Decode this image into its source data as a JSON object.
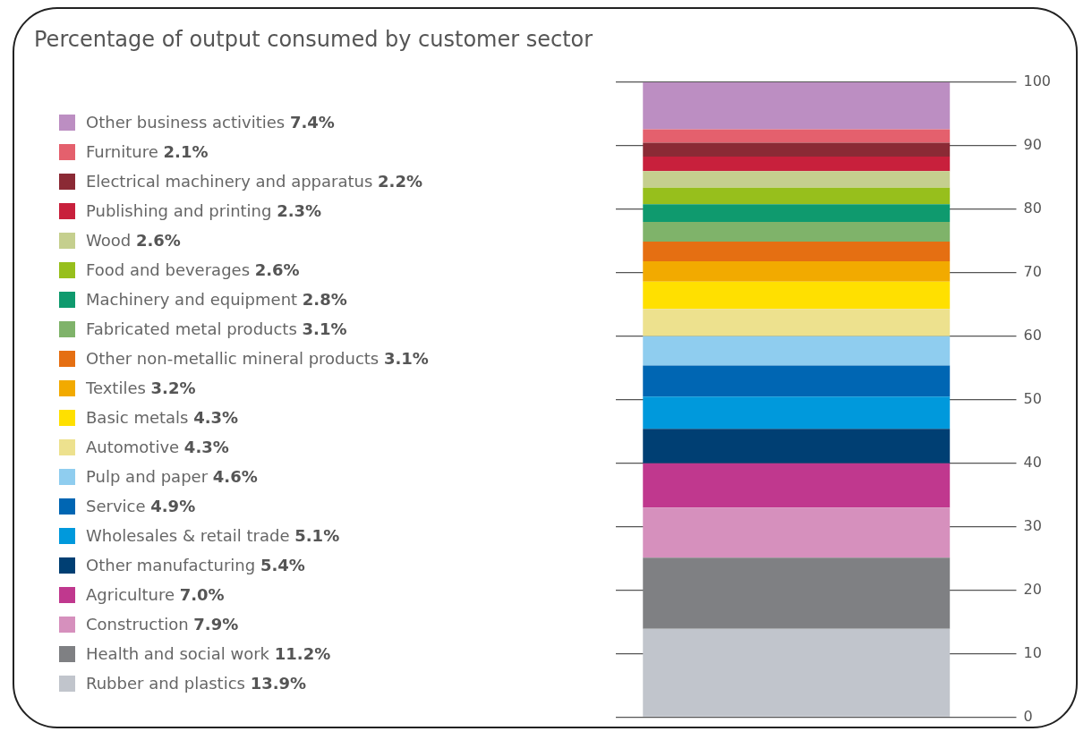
{
  "chart_data": {
    "type": "bar",
    "title": "Percentage of output consumed by customer sector",
    "stacked": true,
    "categories": [
      null
    ],
    "ylim": [
      0,
      100
    ],
    "yticks": [
      0,
      10,
      20,
      30,
      40,
      50,
      60,
      70,
      80,
      90,
      100
    ],
    "grid": "y",
    "legend": "left",
    "series": [
      {
        "name": "Rubber and plastics 13.9%",
        "color": "#c1c5cc",
        "values": [
          13.9
        ]
      },
      {
        "name": "Health and social work 11.2%",
        "color": "#7f8083",
        "values": [
          11.2
        ]
      },
      {
        "name": "Construction 7.9%",
        "color": "#d690bd",
        "values": [
          7.9
        ]
      },
      {
        "name": "Agriculture 7.0%",
        "color": "#c0388e",
        "values": [
          7.0
        ]
      },
      {
        "name": "Other manufacturing 5.4%",
        "color": "#003f73",
        "values": [
          5.4
        ]
      },
      {
        "name": "Wholesales & retail trade 5.1%",
        "color": "#0099dc",
        "values": [
          5.1
        ]
      },
      {
        "name": "Service 4.9%",
        "color": "#0066b3",
        "values": [
          4.9
        ]
      },
      {
        "name": "Pulp and paper 4.6%",
        "color": "#8fcdef",
        "values": [
          4.6
        ]
      },
      {
        "name": "Automotive 4.3%",
        "color": "#ede18e",
        "values": [
          4.3
        ]
      },
      {
        "name": "Basic metals 4.3%",
        "color": "#ffe000",
        "values": [
          4.3
        ]
      },
      {
        "name": "Textiles 3.2%",
        "color": "#f2aa00",
        "values": [
          3.2
        ]
      },
      {
        "name": "Other non-metallic mineral products 3.1%",
        "color": "#e56f12",
        "values": [
          3.1
        ]
      },
      {
        "name": "Fabricated metal products 3.1%",
        "color": "#7fb36a",
        "values": [
          3.1
        ]
      },
      {
        "name": "Machinery and equipment 2.8%",
        "color": "#0f9a6e",
        "values": [
          2.8
        ]
      },
      {
        "name": "Food and beverages 2.6%",
        "color": "#97bf1c",
        "values": [
          2.6
        ]
      },
      {
        "name": "Wood 2.6%",
        "color": "#c5cf8e",
        "values": [
          2.6
        ]
      },
      {
        "name": "Publishing and printing 2.3%",
        "color": "#c8203c",
        "values": [
          2.3
        ]
      },
      {
        "name": "Electrical machinery and apparatus 2.2%",
        "color": "#8b2a35",
        "values": [
          2.2
        ]
      },
      {
        "name": "Furniture 2.1%",
        "color": "#e4606d",
        "values": [
          2.1
        ]
      },
      {
        "name": "Other business activities 7.4%",
        "color": "#bc8ec2",
        "values": [
          7.4
        ]
      }
    ]
  }
}
